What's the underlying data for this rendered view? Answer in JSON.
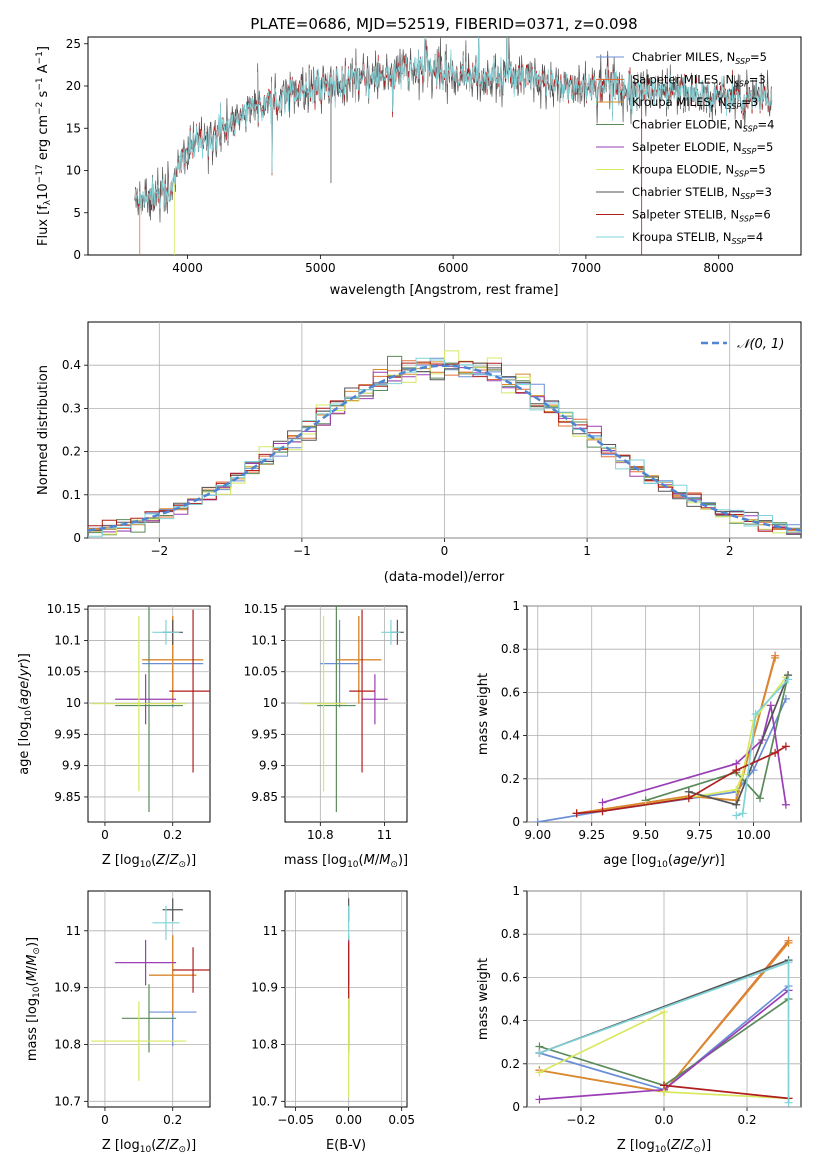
{
  "figure": {
    "title": "PLATE=0686, MJD=52519, FIBERID=0371, z=0.098"
  },
  "colors": {
    "Chabrier MILES": "#6b8fd6",
    "Salpeter MILES": "#e0703a",
    "Kroupa MILES": "#d98a2c",
    "Chabrier ELODIE": "#5a8a5a",
    "Salpeter ELODIE": "#9a3fb5",
    "Kroupa ELODIE": "#d8e860",
    "Chabrier STELIB": "#555555",
    "Salpeter STELIB": "#b01e1e",
    "Kroupa STELIB": "#7fd3d8"
  },
  "chart_data": [
    {
      "id": "spectrum",
      "type": "line",
      "title": "PLATE=0686, MJD=52519, FIBERID=0371, z=0.098",
      "xlabel": "wavelength [Angstrom, rest frame]",
      "ylabel": "Flux [f$_\\lambda$10$^{-17}$ erg cm$^{-2}$ s$^{-1}$ A$^{-1}$]",
      "xlim": [
        3250,
        8620
      ],
      "ylim": [
        0,
        25.8
      ],
      "xticks": [
        4000,
        5000,
        6000,
        7000,
        8000
      ],
      "yticks": [
        0,
        5,
        10,
        15,
        20,
        25
      ],
      "grid": false,
      "legend_position": "top-right",
      "continuum": {
        "x": [
          3600,
          3700,
          3800,
          3850,
          3900,
          3950,
          4000,
          4100,
          4200,
          4300,
          4400,
          4600,
          4800,
          5000,
          5200,
          5400,
          5600,
          5800,
          6000,
          6200,
          6400,
          6600,
          6800,
          7000,
          7200,
          7400,
          7600,
          7800,
          8000,
          8200,
          8400
        ],
        "y": [
          6.5,
          7.0,
          7.5,
          7.3,
          8.5,
          11.0,
          12.5,
          13.5,
          14.0,
          15.0,
          16.5,
          18.0,
          19.5,
          20.0,
          20.5,
          21.0,
          21.5,
          22.0,
          21.5,
          21.0,
          21.0,
          20.5,
          20.0,
          20.0,
          20.0,
          19.5,
          19.5,
          19.0,
          18.8,
          18.5,
          18.5
        ]
      },
      "series": [
        {
          "name": "Chabrier MILES",
          "label_prefix": "Chabrier MILES, N",
          "sub": "SSP",
          "label_suffix": "=5",
          "color": "#6b8fd6"
        },
        {
          "name": "Salpeter MILES",
          "label_prefix": "Salpeter MILES, N",
          "sub": "SSP",
          "label_suffix": "=3",
          "color": "#e0703a"
        },
        {
          "name": "Kroupa MILES",
          "label_prefix": "Kroupa MILES, N",
          "sub": "SSP",
          "label_suffix": "=3",
          "color": "#d98a2c"
        },
        {
          "name": "Chabrier ELODIE",
          "label_prefix": "Chabrier ELODIE, N",
          "sub": "SSP",
          "label_suffix": "=4",
          "color": "#5a8a5a"
        },
        {
          "name": "Salpeter ELODIE",
          "label_prefix": "Salpeter ELODIE, N",
          "sub": "SSP",
          "label_suffix": "=5",
          "color": "#9a3fb5"
        },
        {
          "name": "Kroupa ELODIE",
          "label_prefix": "Kroupa ELODIE, N",
          "sub": "SSP",
          "label_suffix": "=5",
          "color": "#d8e860"
        },
        {
          "name": "Chabrier STELIB",
          "label_prefix": "Chabrier STELIB, N",
          "sub": "SSP",
          "label_suffix": "=3",
          "color": "#555555"
        },
        {
          "name": "Salpeter STELIB",
          "label_prefix": "Salpeter STELIB, N",
          "sub": "SSP",
          "label_suffix": "=6",
          "color": "#b01e1e"
        },
        {
          "name": "Kroupa STELIB",
          "label_prefix": "Kroupa STELIB, N",
          "sub": "SSP",
          "label_suffix": "=4",
          "color": "#7fd3d8"
        }
      ]
    },
    {
      "id": "residuals",
      "type": "line",
      "xlabel": "(data-model)/error",
      "ylabel": "Normed distribution",
      "xlim": [
        -2.5,
        2.5
      ],
      "ylim": [
        0,
        0.5
      ],
      "xticks": [
        -2,
        -1,
        0,
        1,
        2
      ],
      "yticks": [
        0.0,
        0.1,
        0.2,
        0.3,
        0.4
      ],
      "grid": true,
      "bin_width": 0.1,
      "legend_label": "𝒩(0, 1)",
      "legend_position": "top-right",
      "reference_color": "#4f86d4"
    },
    {
      "id": "age_vs_Z",
      "type": "scatter",
      "xlabel": "Z [log$_{10}$(Z/Z$_\\odot$)]",
      "ylabel": "age  [log$_{10}$(age/yr)]",
      "xlim": [
        -0.05,
        0.31
      ],
      "ylim": [
        9.81,
        10.155
      ],
      "xticks": [
        0.0,
        0.2
      ],
      "yticks": [
        9.85,
        9.9,
        9.95,
        10.0,
        10.05,
        10.1,
        10.15
      ],
      "grid": true,
      "points": [
        {
          "name": "Chabrier MILES",
          "x": 0.2,
          "y": 10.063,
          "xerr": 0.09,
          "yerr": 0.07
        },
        {
          "name": "Salpeter MILES",
          "x": 0.2,
          "y": 10.069,
          "xerr": 0.09,
          "yerr": 0.07
        },
        {
          "name": "Kroupa MILES",
          "x": 0.2,
          "y": 10.069,
          "xerr": 0.09,
          "yerr": 0.07
        },
        {
          "name": "Chabrier ELODIE",
          "x": 0.13,
          "y": 9.996,
          "xerr": 0.1,
          "yerr": 0.17
        },
        {
          "name": "Salpeter ELODIE",
          "x": 0.12,
          "y": 10.006,
          "xerr": 0.09,
          "yerr": 0.04
        },
        {
          "name": "Kroupa ELODIE",
          "x": 0.1,
          "y": 9.999,
          "xerr": 0.14,
          "yerr": 0.14
        },
        {
          "name": "Chabrier STELIB",
          "x": 0.2,
          "y": 10.113,
          "xerr": 0.03,
          "yerr": 0.02
        },
        {
          "name": "Salpeter STELIB",
          "x": 0.26,
          "y": 10.019,
          "xerr": 0.07,
          "yerr": 0.13
        },
        {
          "name": "Kroupa STELIB",
          "x": 0.18,
          "y": 10.113,
          "xerr": 0.04,
          "yerr": 0.02
        }
      ]
    },
    {
      "id": "age_vs_mass",
      "type": "scatter",
      "xlabel": "mass [log$_{10}$(M/M$_\\odot$)]",
      "xlim": [
        10.69,
        11.07
      ],
      "ylim": [
        9.81,
        10.155
      ],
      "xticks": [
        10.8,
        11.0
      ],
      "yticks": [
        9.85,
        9.9,
        9.95,
        10.0,
        10.05,
        10.1,
        10.15
      ],
      "grid": true,
      "points": [
        {
          "name": "Chabrier MILES",
          "x": 10.86,
          "y": 10.063,
          "xerr": 0.06,
          "yerr": 0.07
        },
        {
          "name": "Salpeter MILES",
          "x": 10.92,
          "y": 10.069,
          "xerr": 0.07,
          "yerr": 0.07
        },
        {
          "name": "Kroupa MILES",
          "x": 10.92,
          "y": 10.069,
          "xerr": 0.07,
          "yerr": 0.07
        },
        {
          "name": "Chabrier ELODIE",
          "x": 10.85,
          "y": 9.996,
          "xerr": 0.06,
          "yerr": 0.17
        },
        {
          "name": "Salpeter ELODIE",
          "x": 10.97,
          "y": 10.006,
          "xerr": 0.04,
          "yerr": 0.04
        },
        {
          "name": "Kroupa ELODIE",
          "x": 10.81,
          "y": 9.999,
          "xerr": 0.07,
          "yerr": 0.14
        },
        {
          "name": "Chabrier STELIB",
          "x": 11.04,
          "y": 10.113,
          "xerr": 0.02,
          "yerr": 0.02
        },
        {
          "name": "Salpeter STELIB",
          "x": 10.93,
          "y": 10.019,
          "xerr": 0.04,
          "yerr": 0.13
        },
        {
          "name": "Kroupa STELIB",
          "x": 11.02,
          "y": 10.113,
          "xerr": 0.03,
          "yerr": 0.02
        }
      ]
    },
    {
      "id": "mass_vs_Z",
      "type": "scatter",
      "xlabel": "Z [log$_{10}$(Z/Z$_\\odot$)]",
      "ylabel": "mass [log$_{10}$(M/M$_\\odot$)]",
      "xlim": [
        -0.05,
        0.31
      ],
      "ylim": [
        10.69,
        11.07
      ],
      "xticks": [
        0.0,
        0.2
      ],
      "yticks": [
        10.7,
        10.8,
        10.9,
        11.0
      ],
      "grid": true,
      "points": [
        {
          "name": "Chabrier MILES",
          "x": 0.2,
          "y": 10.857,
          "xerr": 0.07,
          "yerr": 0.06
        },
        {
          "name": "Salpeter MILES",
          "x": 0.2,
          "y": 10.922,
          "xerr": 0.07,
          "yerr": 0.07
        },
        {
          "name": "Kroupa MILES",
          "x": 0.2,
          "y": 10.922,
          "xerr": 0.07,
          "yerr": 0.07
        },
        {
          "name": "Chabrier ELODIE",
          "x": 0.13,
          "y": 10.846,
          "xerr": 0.08,
          "yerr": 0.06
        },
        {
          "name": "Salpeter ELODIE",
          "x": 0.12,
          "y": 10.944,
          "xerr": 0.09,
          "yerr": 0.04
        },
        {
          "name": "Kroupa ELODIE",
          "x": 0.1,
          "y": 10.806,
          "xerr": 0.14,
          "yerr": 0.07
        },
        {
          "name": "Chabrier STELIB",
          "x": 0.2,
          "y": 11.037,
          "xerr": 0.03,
          "yerr": 0.02
        },
        {
          "name": "Salpeter STELIB",
          "x": 0.26,
          "y": 10.931,
          "xerr": 0.06,
          "yerr": 0.04
        },
        {
          "name": "Kroupa STELIB",
          "x": 0.18,
          "y": 11.014,
          "xerr": 0.04,
          "yerr": 0.03
        }
      ]
    },
    {
      "id": "mass_vs_ebv",
      "type": "scatter",
      "xlabel": "E(B-V)",
      "xlim": [
        -0.06,
        0.055
      ],
      "ylim": [
        10.69,
        11.07
      ],
      "xticks": [
        -0.05,
        0.0,
        0.05
      ],
      "xtick_labels": [
        "−0.05",
        "0.00",
        "0.05"
      ],
      "yticks": [
        10.7,
        10.8,
        10.9,
        11.0
      ],
      "grid": true,
      "points": [
        {
          "name": "Chabrier MILES",
          "x": 0.0,
          "y": 10.857,
          "xerr": 0.0,
          "yerr": 0.06
        },
        {
          "name": "Salpeter MILES",
          "x": 0.0,
          "y": 10.922,
          "xerr": 0.0,
          "yerr": 0.07
        },
        {
          "name": "Kroupa MILES",
          "x": 0.0,
          "y": 10.922,
          "xerr": 0.0,
          "yerr": 0.07
        },
        {
          "name": "Chabrier ELODIE",
          "x": 0.0,
          "y": 10.846,
          "xerr": 0.0,
          "yerr": 0.06
        },
        {
          "name": "Salpeter ELODIE",
          "x": 0.0,
          "y": 10.944,
          "xerr": 0.0,
          "yerr": 0.04
        },
        {
          "name": "Kroupa ELODIE",
          "x": 0.0,
          "y": 10.806,
          "xerr": 0.0,
          "yerr": 0.1
        },
        {
          "name": "Chabrier STELIB",
          "x": 0.0,
          "y": 11.037,
          "xerr": 0.0,
          "yerr": 0.02
        },
        {
          "name": "Salpeter STELIB",
          "x": 0.0,
          "y": 10.931,
          "xerr": 0.0,
          "yerr": 0.05
        },
        {
          "name": "Kroupa STELIB",
          "x": 0.0,
          "y": 11.014,
          "xerr": 0.0,
          "yerr": 0.03
        }
      ]
    },
    {
      "id": "weight_vs_age",
      "type": "line",
      "xlabel": "age  [log$_{10}$(age/yr)]",
      "ylabel": "mass weight",
      "xlim": [
        8.95,
        10.22
      ],
      "ylim": [
        0,
        1.0
      ],
      "xticks": [
        9.0,
        9.25,
        9.5,
        9.75,
        10.0
      ],
      "xtick_labels": [
        "9.00",
        "9.25",
        "9.50",
        "9.75",
        "10.00"
      ],
      "yticks": [
        0.0,
        0.2,
        0.4,
        0.6,
        0.8,
        1.0
      ],
      "grid": true,
      "series": [
        {
          "name": "Chabrier MILES",
          "x": [
            9.0,
            9.3,
            9.92,
            10.0,
            10.15
          ],
          "y": [
            0.0,
            0.05,
            0.14,
            0.24,
            0.57
          ]
        },
        {
          "name": "Salpeter MILES",
          "x": [
            9.18,
            9.7,
            9.92,
            10.1
          ],
          "y": [
            0.04,
            0.12,
            0.1,
            0.77
          ]
        },
        {
          "name": "Kroupa MILES",
          "x": [
            9.18,
            9.7,
            9.92,
            10.1
          ],
          "y": [
            0.04,
            0.12,
            0.1,
            0.76
          ]
        },
        {
          "name": "Chabrier ELODIE",
          "x": [
            9.5,
            9.92,
            10.03,
            10.16
          ],
          "y": [
            0.1,
            0.23,
            0.11,
            0.68
          ]
        },
        {
          "name": "Salpeter ELODIE",
          "x": [
            9.3,
            9.92,
            10.04,
            10.08,
            10.15
          ],
          "y": [
            0.09,
            0.27,
            0.38,
            0.54,
            0.08
          ]
        },
        {
          "name": "Kroupa ELODIE",
          "x": [
            9.5,
            9.92,
            9.95,
            10.0,
            10.15
          ],
          "y": [
            0.08,
            0.15,
            0.22,
            0.47,
            0.67
          ]
        },
        {
          "name": "Chabrier STELIB",
          "x": [
            9.7,
            9.92,
            10.16
          ],
          "y": [
            0.14,
            0.08,
            0.68
          ]
        },
        {
          "name": "Salpeter STELIB",
          "x": [
            9.18,
            9.3,
            9.7,
            9.92,
            10.1,
            10.15
          ],
          "y": [
            0.04,
            0.05,
            0.11,
            0.24,
            0.32,
            0.35
          ]
        },
        {
          "name": "Kroupa STELIB",
          "x": [
            9.92,
            9.95,
            10.01,
            10.16
          ],
          "y": [
            0.03,
            0.04,
            0.5,
            0.66
          ]
        }
      ]
    },
    {
      "id": "weight_vs_Z",
      "type": "line",
      "xlabel": "Z [log$_{10}$(Z/Z$_\\odot$)]",
      "ylabel": "mass weight",
      "xlim": [
        -0.33,
        0.33
      ],
      "ylim": [
        0,
        1.0
      ],
      "xticks": [
        -0.2,
        0.0,
        0.2
      ],
      "xtick_labels": [
        "−0.2",
        "0.0",
        "0.2"
      ],
      "yticks": [
        0.0,
        0.2,
        0.4,
        0.6,
        0.8,
        1.0
      ],
      "grid": true,
      "series": [
        {
          "name": "Chabrier MILES",
          "x": [
            -0.3,
            0.0,
            0.3
          ],
          "y": [
            0.25,
            0.08,
            0.56
          ]
        },
        {
          "name": "Salpeter MILES",
          "x": [
            -0.3,
            0.0,
            0.3
          ],
          "y": [
            0.17,
            0.07,
            0.77
          ]
        },
        {
          "name": "Kroupa MILES",
          "x": [
            -0.3,
            0.0,
            0.3
          ],
          "y": [
            0.17,
            0.07,
            0.76
          ]
        },
        {
          "name": "Chabrier ELODIE",
          "x": [
            -0.3,
            0.0,
            0.3
          ],
          "y": [
            0.28,
            0.1,
            0.5
          ]
        },
        {
          "name": "Salpeter ELODIE",
          "x": [
            -0.3,
            0.0,
            0.3
          ],
          "y": [
            0.035,
            0.08,
            0.54
          ]
        },
        {
          "name": "Kroupa ELODIE",
          "x": [
            -0.3,
            0.0,
            0.0,
            0.3
          ],
          "y": [
            0.16,
            0.44,
            0.07,
            0.04
          ]
        },
        {
          "name": "Chabrier STELIB",
          "x": [
            -0.3,
            0.3
          ],
          "y": [
            0.25,
            0.68
          ]
        },
        {
          "name": "Salpeter STELIB",
          "x": [
            0.0,
            0.3
          ],
          "y": [
            0.1,
            0.04
          ]
        },
        {
          "name": "Kroupa STELIB",
          "x": [
            -0.3,
            0.3,
            0.3
          ],
          "y": [
            0.25,
            0.67,
            0.02
          ]
        }
      ]
    }
  ]
}
